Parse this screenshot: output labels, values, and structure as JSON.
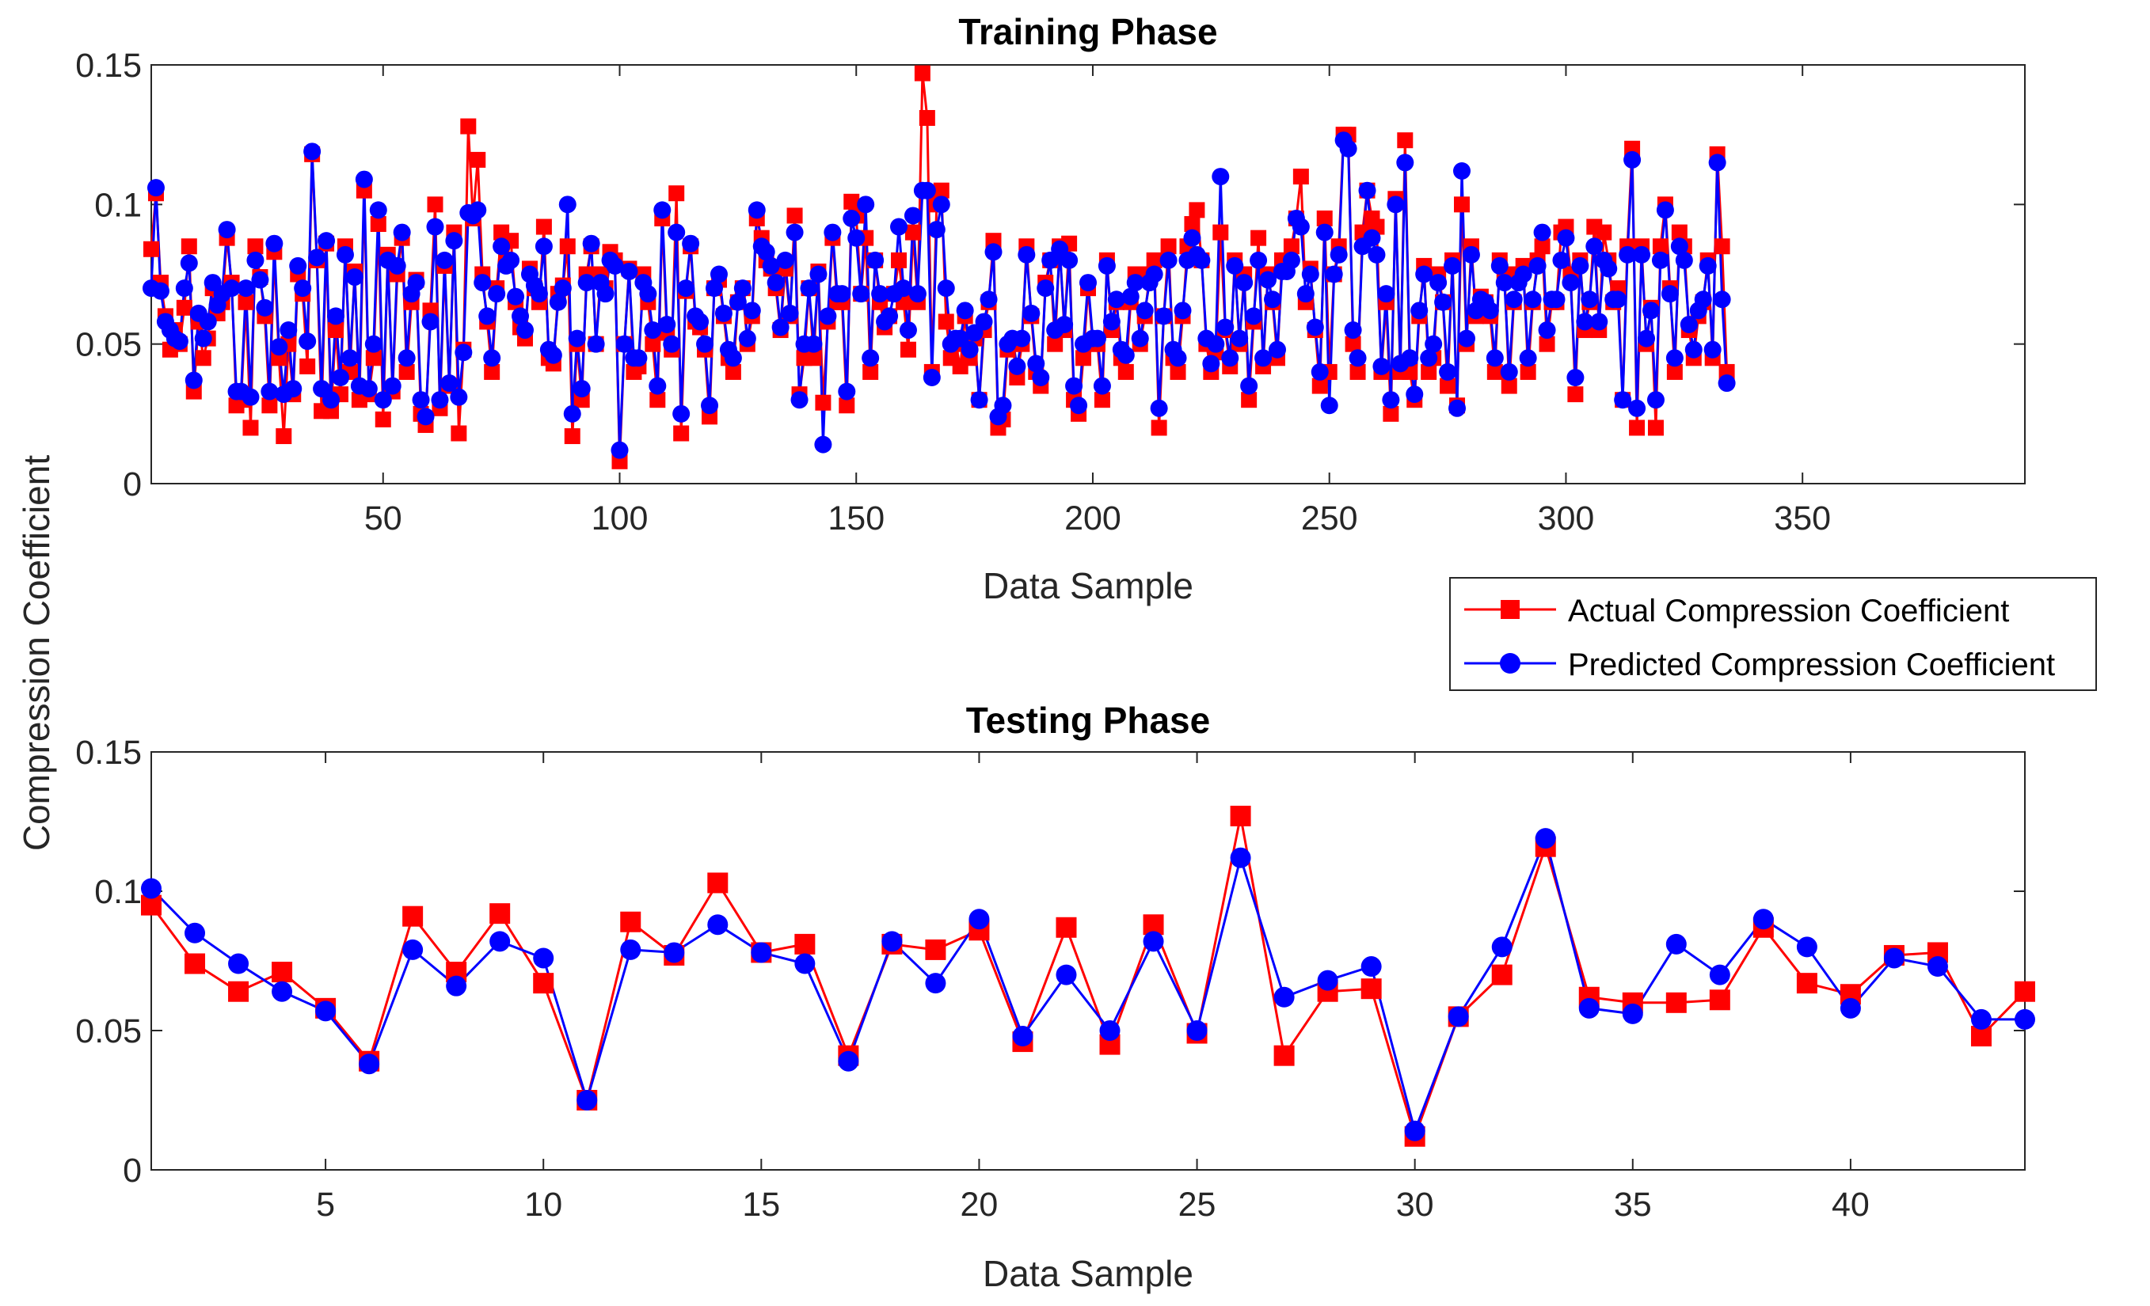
{
  "figure": {
    "ylabel": "Compression Coefficient",
    "colors": {
      "actual": "#ff0000",
      "predicted": "#0000ff",
      "axes": "#262626"
    }
  },
  "legend": {
    "placement": "between-panels-right",
    "actual_label": "Actual Compression Coefficient",
    "predicted_label": "Predicted Compression Coefficient"
  },
  "chart_data": [
    {
      "type": "line",
      "title": "Training Phase",
      "xlabel": "Data Sample",
      "ylabel": "Compression Coefficient",
      "xlim": [
        1,
        397
      ],
      "ylim": [
        0,
        0.15
      ],
      "xticks": [
        50,
        100,
        150,
        200,
        250,
        300,
        350
      ],
      "yticks": [
        0,
        0.05,
        0.1,
        0.15
      ],
      "ytick_labels": [
        "0",
        "0.05",
        "0.1",
        "0.15"
      ],
      "series": [
        {
          "name": "Actual Compression Coefficient",
          "marker": "square",
          "color": "#ff0000",
          "values": [
            0.084,
            0.104,
            0.072,
            0.06,
            0.048,
            0.055,
            0.05,
            0.063,
            0.085,
            0.033,
            0.058,
            0.045,
            0.052,
            0.07,
            0.061,
            0.065,
            0.088,
            0.072,
            0.028,
            0.03,
            0.065,
            0.02,
            0.085,
            0.074,
            0.06,
            0.028,
            0.083,
            0.045,
            0.017,
            0.05,
            0.032,
            0.075,
            0.068,
            0.042,
            0.118,
            0.08,
            0.026,
            0.086,
            0.026,
            0.055,
            0.032,
            0.085,
            0.04,
            0.076,
            0.03,
            0.105,
            0.032,
            0.045,
            0.093,
            0.023,
            0.082,
            0.033,
            0.075,
            0.088,
            0.04,
            0.065,
            0.073,
            0.025,
            0.021,
            0.062,
            0.1,
            0.027,
            0.078,
            0.035,
            0.09,
            0.018,
            0.048,
            0.128,
            0.095,
            0.116,
            0.075,
            0.058,
            0.04,
            0.07,
            0.09,
            0.08,
            0.087,
            0.065,
            0.056,
            0.052,
            0.077,
            0.07,
            0.065,
            0.092,
            0.045,
            0.043,
            0.068,
            0.071,
            0.085,
            0.017,
            0.05,
            0.03,
            0.075,
            0.085,
            0.05,
            0.075,
            0.07,
            0.083,
            0.08,
            0.008,
            0.05,
            0.077,
            0.04,
            0.042,
            0.075,
            0.065,
            0.05,
            0.03,
            0.095,
            0.054,
            0.048,
            0.104,
            0.018,
            0.069,
            0.085,
            0.058,
            0.056,
            0.048,
            0.024,
            0.07,
            0.073,
            0.06,
            0.045,
            0.04,
            0.065,
            0.07,
            0.05,
            0.06,
            0.095,
            0.088,
            0.08,
            0.077,
            0.07,
            0.055,
            0.077,
            0.06,
            0.096,
            0.032,
            0.045,
            0.07,
            0.045,
            0.076,
            0.029,
            0.058,
            0.088,
            0.065,
            0.065,
            0.028,
            0.101,
            0.096,
            0.068,
            0.088,
            0.04,
            0.08,
            0.065,
            0.056,
            0.06,
            0.068,
            0.08,
            0.065,
            0.048,
            0.09,
            0.065,
            0.147,
            0.131,
            0.04,
            0.1,
            0.105,
            0.058,
            0.045,
            0.05,
            0.042,
            0.06,
            0.045,
            0.052,
            0.03,
            0.055,
            0.065,
            0.087,
            0.02,
            0.023,
            0.048,
            0.05,
            0.038,
            0.05,
            0.085,
            0.06,
            0.04,
            0.035,
            0.072,
            0.08,
            0.05,
            0.085,
            0.055,
            0.086,
            0.03,
            0.025,
            0.045,
            0.07,
            0.05,
            0.05,
            0.03,
            0.08,
            0.055,
            0.065,
            0.045,
            0.04,
            0.065,
            0.075,
            0.05,
            0.06,
            0.075,
            0.08,
            0.02,
            0.06,
            0.085,
            0.045,
            0.04,
            0.06,
            0.085,
            0.093,
            0.098,
            0.08,
            0.05,
            0.04,
            0.047,
            0.09,
            0.055,
            0.042,
            0.08,
            0.05,
            0.075,
            0.03,
            0.058,
            0.088,
            0.042,
            0.075,
            0.065,
            0.045,
            0.08,
            0.08,
            0.085,
            0.095,
            0.11,
            0.065,
            0.077,
            0.055,
            0.035,
            0.095,
            0.04,
            0.075,
            0.085,
            0.125,
            0.125,
            0.05,
            0.04,
            0.09,
            0.105,
            0.095,
            0.092,
            0.04,
            0.065,
            0.025,
            0.102,
            0.04,
            0.123,
            0.04,
            0.03,
            0.06,
            0.078,
            0.04,
            0.045,
            0.075,
            0.065,
            0.035,
            0.08,
            0.028,
            0.1,
            0.05,
            0.085,
            0.06,
            0.067,
            0.065,
            0.06,
            0.04,
            0.08,
            0.075,
            0.035,
            0.065,
            0.075,
            0.078,
            0.04,
            0.065,
            0.08,
            0.085,
            0.05,
            0.065,
            0.065,
            0.09,
            0.092,
            0.075,
            0.032,
            0.08,
            0.055,
            0.065,
            0.092,
            0.055,
            0.09,
            0.08,
            0.065,
            0.07,
            0.03,
            0.085,
            0.12,
            0.02,
            0.085,
            0.05,
            0.063,
            0.02,
            0.085,
            0.1,
            0.07,
            0.04,
            0.09,
            0.085,
            0.055,
            0.045,
            0.06,
            0.065,
            0.08,
            0.045,
            0.118,
            0.085,
            0.04
          ]
        },
        {
          "name": "Predicted Compression Coefficient",
          "marker": "circle",
          "color": "#0000ff",
          "values": [
            0.07,
            0.106,
            0.069,
            0.058,
            0.055,
            0.052,
            0.051,
            0.07,
            0.079,
            0.037,
            0.061,
            0.052,
            0.058,
            0.072,
            0.064,
            0.068,
            0.091,
            0.07,
            0.033,
            0.033,
            0.07,
            0.031,
            0.08,
            0.073,
            0.063,
            0.033,
            0.086,
            0.049,
            0.032,
            0.055,
            0.034,
            0.078,
            0.07,
            0.051,
            0.119,
            0.081,
            0.034,
            0.087,
            0.03,
            0.06,
            0.038,
            0.082,
            0.045,
            0.074,
            0.035,
            0.109,
            0.034,
            0.05,
            0.098,
            0.03,
            0.08,
            0.035,
            0.078,
            0.09,
            0.045,
            0.068,
            0.072,
            0.03,
            0.024,
            0.058,
            0.092,
            0.03,
            0.08,
            0.036,
            0.087,
            0.031,
            0.047,
            0.097,
            0.096,
            0.098,
            0.072,
            0.06,
            0.045,
            0.068,
            0.085,
            0.078,
            0.08,
            0.067,
            0.06,
            0.055,
            0.075,
            0.071,
            0.068,
            0.085,
            0.048,
            0.046,
            0.065,
            0.07,
            0.1,
            0.025,
            0.052,
            0.034,
            0.072,
            0.086,
            0.05,
            0.072,
            0.068,
            0.08,
            0.078,
            0.012,
            0.05,
            0.076,
            0.045,
            0.045,
            0.072,
            0.068,
            0.055,
            0.035,
            0.098,
            0.057,
            0.05,
            0.09,
            0.025,
            0.07,
            0.086,
            0.06,
            0.058,
            0.05,
            0.028,
            0.07,
            0.075,
            0.061,
            0.048,
            0.045,
            0.065,
            0.07,
            0.052,
            0.062,
            0.098,
            0.085,
            0.083,
            0.078,
            0.072,
            0.056,
            0.08,
            0.061,
            0.09,
            0.03,
            0.05,
            0.07,
            0.05,
            0.075,
            0.014,
            0.06,
            0.09,
            0.068,
            0.068,
            0.033,
            0.095,
            0.088,
            0.068,
            0.1,
            0.045,
            0.08,
            0.068,
            0.058,
            0.06,
            0.068,
            0.092,
            0.07,
            0.055,
            0.096,
            0.068,
            0.105,
            0.105,
            0.038,
            0.091,
            0.1,
            0.07,
            0.05,
            0.052,
            0.052,
            0.062,
            0.048,
            0.054,
            0.03,
            0.058,
            0.066,
            0.083,
            0.024,
            0.028,
            0.05,
            0.052,
            0.042,
            0.052,
            0.082,
            0.061,
            0.043,
            0.038,
            0.07,
            0.08,
            0.055,
            0.084,
            0.057,
            0.08,
            0.035,
            0.028,
            0.05,
            0.072,
            0.052,
            0.052,
            0.035,
            0.078,
            0.058,
            0.066,
            0.048,
            0.046,
            0.067,
            0.072,
            0.052,
            0.062,
            0.072,
            0.075,
            0.027,
            0.06,
            0.08,
            0.048,
            0.045,
            0.062,
            0.08,
            0.088,
            0.082,
            0.08,
            0.052,
            0.043,
            0.05,
            0.11,
            0.056,
            0.045,
            0.078,
            0.052,
            0.072,
            0.035,
            0.06,
            0.08,
            0.045,
            0.073,
            0.066,
            0.048,
            0.076,
            0.076,
            0.08,
            0.095,
            0.092,
            0.068,
            0.075,
            0.056,
            0.04,
            0.09,
            0.028,
            0.075,
            0.082,
            0.123,
            0.12,
            0.055,
            0.045,
            0.085,
            0.105,
            0.088,
            0.082,
            0.042,
            0.068,
            0.03,
            0.1,
            0.043,
            0.115,
            0.045,
            0.032,
            0.062,
            0.075,
            0.045,
            0.05,
            0.072,
            0.065,
            0.04,
            0.078,
            0.027,
            0.112,
            0.052,
            0.082,
            0.062,
            0.066,
            0.065,
            0.062,
            0.045,
            0.078,
            0.072,
            0.04,
            0.066,
            0.072,
            0.075,
            0.045,
            0.066,
            0.078,
            0.09,
            0.055,
            0.066,
            0.066,
            0.08,
            0.088,
            0.072,
            0.038,
            0.078,
            0.058,
            0.066,
            0.085,
            0.058,
            0.08,
            0.077,
            0.066,
            0.066,
            0.03,
            0.082,
            0.116,
            0.027,
            0.082,
            0.052,
            0.062,
            0.03,
            0.08,
            0.098,
            0.068,
            0.045,
            0.085,
            0.08,
            0.057,
            0.048,
            0.062,
            0.066,
            0.078,
            0.048,
            0.115,
            0.066,
            0.036
          ]
        }
      ]
    },
    {
      "type": "line",
      "title": "Testing Phase",
      "xlabel": "Data Sample",
      "ylabel": "Compression Coefficient",
      "xlim": [
        1,
        44
      ],
      "ylim": [
        0,
        0.15
      ],
      "xticks": [
        5,
        10,
        15,
        20,
        25,
        30,
        35,
        40
      ],
      "yticks": [
        0,
        0.05,
        0.1,
        0.15
      ],
      "ytick_labels": [
        "0",
        "0.05",
        "0.1",
        "0.15"
      ],
      "series": [
        {
          "name": "Actual Compression Coefficient",
          "marker": "square",
          "color": "#ff0000",
          "values": [
            0.095,
            0.074,
            0.064,
            0.071,
            0.058,
            0.039,
            0.091,
            0.071,
            0.092,
            0.067,
            0.025,
            0.089,
            0.077,
            0.103,
            0.078,
            0.081,
            0.041,
            0.081,
            0.079,
            0.086,
            0.046,
            0.087,
            0.045,
            0.088,
            0.049,
            0.127,
            0.041,
            0.064,
            0.065,
            0.012,
            0.055,
            0.07,
            0.116,
            0.062,
            0.06,
            0.06,
            0.061,
            0.087,
            0.067,
            0.063,
            0.077,
            0.078,
            0.048,
            0.064
          ]
        },
        {
          "name": "Predicted Compression Coefficient",
          "marker": "circle",
          "color": "#0000ff",
          "values": [
            0.101,
            0.085,
            0.074,
            0.064,
            0.057,
            0.038,
            0.079,
            0.066,
            0.082,
            0.076,
            0.025,
            0.079,
            0.078,
            0.088,
            0.078,
            0.074,
            0.039,
            0.082,
            0.067,
            0.09,
            0.048,
            0.07,
            0.05,
            0.082,
            0.05,
            0.112,
            0.062,
            0.068,
            0.073,
            0.014,
            0.055,
            0.08,
            0.119,
            0.058,
            0.056,
            0.081,
            0.07,
            0.09,
            0.08,
            0.058,
            0.076,
            0.073,
            0.054,
            0.054
          ]
        }
      ]
    }
  ]
}
